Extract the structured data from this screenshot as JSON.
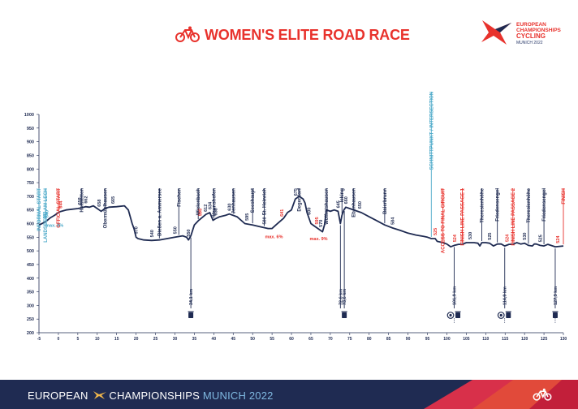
{
  "header": {
    "title": "WOMEN'S ELITE ROAD RACE",
    "logo": {
      "line1": "EUROPEAN",
      "line2": "CHAMPIONSHIPS",
      "line3": "CYCLING",
      "line4": "MUNICH 2022"
    }
  },
  "footer": {
    "left": "EUROPEAN",
    "middle": "CHAMPIONSHIPS",
    "city": "MUNICH 2022"
  },
  "colors": {
    "brand_red": "#e8322c",
    "navy": "#1f2b52",
    "teal": "#4aa8c8",
    "profile_line": "#1f2b52"
  },
  "chart_data": {
    "type": "line",
    "xlim": [
      -5,
      130
    ],
    "ylim": [
      200,
      1000
    ],
    "x_ticks": [
      -5,
      0,
      5,
      10,
      15,
      20,
      25,
      30,
      35,
      40,
      45,
      50,
      55,
      60,
      65,
      70,
      75,
      80,
      85,
      90,
      95,
      100,
      105,
      110,
      115,
      120,
      125,
      130
    ],
    "y_ticks": [
      200,
      250,
      300,
      350,
      400,
      450,
      500,
      550,
      600,
      650,
      700,
      750,
      800,
      850,
      900,
      950,
      1000
    ],
    "grid": false,
    "profile": [
      [
        -5,
        595
      ],
      [
        -4.2,
        600
      ],
      [
        -3,
        610
      ],
      [
        -2,
        622
      ],
      [
        -1,
        630
      ],
      [
        0,
        640
      ],
      [
        0.5,
        644
      ],
      [
        2,
        650
      ],
      [
        5,
        655
      ],
      [
        6,
        658
      ],
      [
        7,
        662
      ],
      [
        8,
        660
      ],
      [
        9,
        665
      ],
      [
        10,
        655
      ],
      [
        10.5,
        650
      ],
      [
        11,
        645
      ],
      [
        12,
        655
      ],
      [
        13,
        660
      ],
      [
        15,
        662
      ],
      [
        17,
        665
      ],
      [
        18,
        650
      ],
      [
        19,
        600
      ],
      [
        19.5,
        580
      ],
      [
        20,
        550
      ],
      [
        20.5,
        545
      ],
      [
        22,
        540
      ],
      [
        24,
        538
      ],
      [
        26,
        540
      ],
      [
        28,
        545
      ],
      [
        30,
        550
      ],
      [
        32,
        555
      ],
      [
        33,
        550
      ],
      [
        33.5,
        540
      ],
      [
        34.1,
        555
      ],
      [
        35,
        595
      ],
      [
        36,
        610
      ],
      [
        37,
        622
      ],
      [
        38,
        634
      ],
      [
        39,
        640
      ],
      [
        39.8,
        612
      ],
      [
        40.5,
        618
      ],
      [
        41.5,
        625
      ],
      [
        43,
        630
      ],
      [
        44,
        635
      ],
      [
        46,
        625
      ],
      [
        48,
        600
      ],
      [
        50,
        595
      ],
      [
        52,
        588
      ],
      [
        54,
        582
      ],
      [
        55,
        582
      ],
      [
        56,
        595
      ],
      [
        58,
        620
      ],
      [
        59,
        641
      ],
      [
        60,
        650
      ],
      [
        61,
        690
      ],
      [
        62,
        700
      ],
      [
        63,
        690
      ],
      [
        63.5,
        675
      ],
      [
        64,
        640
      ],
      [
        65,
        600
      ],
      [
        66,
        590
      ],
      [
        67,
        580
      ],
      [
        68,
        570
      ],
      [
        68.5,
        595
      ],
      [
        69,
        650
      ],
      [
        70,
        645
      ],
      [
        71,
        650
      ],
      [
        72,
        645
      ],
      [
        72.6,
        600
      ],
      [
        73,
        630
      ],
      [
        73.5,
        650
      ],
      [
        74,
        660
      ],
      [
        75,
        655
      ],
      [
        78,
        640
      ],
      [
        80,
        625
      ],
      [
        82,
        610
      ],
      [
        84,
        595
      ],
      [
        86,
        584
      ],
      [
        88,
        575
      ],
      [
        90,
        565
      ],
      [
        92,
        558
      ],
      [
        94,
        553
      ],
      [
        95,
        550
      ],
      [
        96,
        545
      ],
      [
        97,
        545
      ],
      [
        97.5,
        535
      ],
      [
        99,
        530
      ],
      [
        100,
        525
      ],
      [
        101,
        515
      ],
      [
        101.9,
        520
      ],
      [
        103,
        524
      ],
      [
        104,
        524
      ],
      [
        105,
        530
      ],
      [
        107,
        530
      ],
      [
        108,
        528
      ],
      [
        108.5,
        518
      ],
      [
        109,
        530
      ],
      [
        110,
        530
      ],
      [
        111,
        528
      ],
      [
        112,
        518
      ],
      [
        113,
        525
      ],
      [
        114,
        525
      ],
      [
        114.9,
        518
      ],
      [
        116,
        524
      ],
      [
        117,
        524
      ],
      [
        118,
        530
      ],
      [
        119,
        525
      ],
      [
        120,
        528
      ],
      [
        121,
        520
      ],
      [
        122,
        518
      ],
      [
        122.5,
        525
      ],
      [
        123,
        525
      ],
      [
        124,
        520
      ],
      [
        125,
        518
      ],
      [
        126,
        524
      ],
      [
        127.9,
        515
      ],
      [
        130,
        518
      ]
    ],
    "place_labels": [
      {
        "name": "INFORMAL START",
        "x": -5,
        "alt": "595",
        "color": "teal"
      },
      {
        "name": "LANDSBERG AM LECH",
        "x": -3.3,
        "alt": "600",
        "color": "teal"
      },
      {
        "name": "OFFICIAL START",
        "x": 0,
        "alt": "644",
        "color": "red"
      },
      {
        "name": "Hofstetten",
        "x": 6,
        "alt": "658"
      },
      {
        "name": "Obermühlhausen",
        "x": 12,
        "alt": "658"
      },
      {
        "name": "Dießen a. Ammersee",
        "x": 26,
        "alt": "570"
      },
      {
        "name": "Fischen",
        "x": 31,
        "alt": "540"
      },
      {
        "name": "Wielenbach",
        "x": 36,
        "alt": "550"
      },
      {
        "name": "Haunshofen",
        "x": 40,
        "alt": "634"
      },
      {
        "name": "Jenhausen",
        "x": 45,
        "alt": "630"
      },
      {
        "name": "Seeshaupt",
        "x": 50,
        "alt": "595"
      },
      {
        "name": "St. Heinrich",
        "x": 53,
        "alt": "580"
      },
      {
        "name": "Degerdorf",
        "x": 62,
        "alt": "675"
      },
      {
        "name": "Wolfratshausen",
        "x": 69,
        "alt": "570"
      },
      {
        "name": "Icking",
        "x": 73,
        "alt": "645"
      },
      {
        "name": "Ebenhausen",
        "x": 76,
        "alt": "660"
      },
      {
        "name": "Baierbrunn",
        "x": 84,
        "alt": "584"
      },
      {
        "name": "SCHNITTPUNKT / INTERSECTION",
        "x": 96,
        "alt": "",
        "color": "teal"
      },
      {
        "name": "ACCESS TO FINAL CIRCUIT",
        "x": 99,
        "alt": "525",
        "color": "red"
      },
      {
        "name": "FINISH LINE PASSAGE 1",
        "x": 104,
        "alt": "524",
        "color": "red"
      },
      {
        "name": "Theresienhöhe",
        "x": 109,
        "alt": "530"
      },
      {
        "name": "Friedensengel",
        "x": 113,
        "alt": "525"
      },
      {
        "name": "FINISH LINE PASSAGE 2",
        "x": 117,
        "alt": "524",
        "color": "red"
      },
      {
        "name": "Theresienhöhe",
        "x": 121,
        "alt": "530"
      },
      {
        "name": "Friedensengel",
        "x": 125,
        "alt": "525"
      },
      {
        "name": "FINISH",
        "x": 130,
        "alt": "524",
        "color": "red"
      }
    ],
    "point_labels": [
      {
        "x": -3,
        "text": "640",
        "color": "teal"
      },
      {
        "x": -3.5,
        "text": "661",
        "color": "teal"
      },
      {
        "x": 0.5,
        "text": "644",
        "color": "red"
      },
      {
        "x": 5.5,
        "text": "658",
        "color": "navy"
      },
      {
        "x": 7,
        "text": "662",
        "color": "navy"
      },
      {
        "x": 10.5,
        "text": "658",
        "color": "navy"
      },
      {
        "x": 14,
        "text": "665",
        "color": "navy"
      },
      {
        "x": 20,
        "text": "570",
        "color": "navy"
      },
      {
        "x": 24,
        "text": "540",
        "color": "navy"
      },
      {
        "x": 30,
        "text": "550",
        "color": "navy"
      },
      {
        "x": 33.5,
        "text": "550",
        "color": "navy"
      },
      {
        "x": 36.5,
        "text": "595",
        "color": "red"
      },
      {
        "x": 37.8,
        "text": "612",
        "color": "navy"
      },
      {
        "x": 39,
        "text": "634",
        "color": "navy"
      },
      {
        "x": 40.5,
        "text": "638",
        "color": "navy"
      },
      {
        "x": 44,
        "text": "630",
        "color": "navy"
      },
      {
        "x": 48.5,
        "text": "595",
        "color": "navy"
      },
      {
        "x": 53,
        "text": "580",
        "color": "navy"
      },
      {
        "x": 57.5,
        "text": "641",
        "color": "red"
      },
      {
        "x": 61,
        "text": "675",
        "color": "navy"
      },
      {
        "x": 64.5,
        "text": "600",
        "color": "navy"
      },
      {
        "x": 66.5,
        "text": "595",
        "color": "red"
      },
      {
        "x": 67.5,
        "text": "570",
        "color": "navy"
      },
      {
        "x": 72,
        "text": "645",
        "color": "navy"
      },
      {
        "x": 74,
        "text": "660",
        "color": "navy"
      },
      {
        "x": 77.5,
        "text": "650",
        "color": "navy"
      },
      {
        "x": 86,
        "text": "584",
        "color": "navy"
      },
      {
        "x": 97,
        "text": "525",
        "color": "red"
      },
      {
        "x": 102,
        "text": "524",
        "color": "red"
      },
      {
        "x": 106,
        "text": "530",
        "color": "navy"
      },
      {
        "x": 111,
        "text": "525",
        "color": "navy"
      },
      {
        "x": 115.5,
        "text": "524",
        "color": "red"
      },
      {
        "x": 120,
        "text": "530",
        "color": "navy"
      },
      {
        "x": 124,
        "text": "525",
        "color": "navy"
      },
      {
        "x": 128.5,
        "text": "524",
        "color": "red"
      }
    ],
    "gradients": [
      {
        "text": "max. 6%",
        "x": -1,
        "color": "teal"
      },
      {
        "text": "max. 6%",
        "x": 55.5,
        "color": "red"
      },
      {
        "text": "max. 9%",
        "x": 67,
        "color": "red"
      }
    ],
    "km_markers": [
      {
        "km": 34.1,
        "label": "34,1 km",
        "icons": [
          "bin"
        ]
      },
      {
        "km": 72.6,
        "label": "72,6 km",
        "icons": []
      },
      {
        "km": 73.6,
        "label": "73,6 km",
        "icons": [
          "bin"
        ]
      },
      {
        "km": 101.9,
        "label": "101,9 km",
        "icons": [
          "medical",
          "bin"
        ]
      },
      {
        "km": 114.9,
        "label": "114,9 km",
        "icons": [
          "medical",
          "bin"
        ]
      },
      {
        "km": 127.9,
        "label": "127,9 km",
        "icons": [
          "bin"
        ]
      }
    ]
  }
}
